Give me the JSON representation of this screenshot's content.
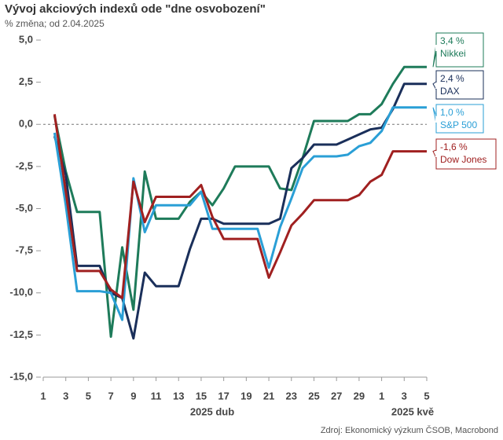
{
  "chart_data": {
    "type": "line",
    "title": "Vývoj akciových indexů ode \"dne osvobození\"",
    "subtitle": "% změna; od 2.04.2025",
    "source": "Zdroj: Ekonomický výzkum ČSOB, Macrobond",
    "x_groups": [
      "2025 dub",
      "2025 kvě"
    ],
    "x": [
      "2025-04-02",
      "2025-04-03",
      "2025-04-04",
      "2025-04-05",
      "2025-04-06",
      "2025-04-07",
      "2025-04-08",
      "2025-04-09",
      "2025-04-10",
      "2025-04-11",
      "2025-04-12",
      "2025-04-13",
      "2025-04-14",
      "2025-04-15",
      "2025-04-16",
      "2025-04-17",
      "2025-04-18",
      "2025-04-19",
      "2025-04-20",
      "2025-04-21",
      "2025-04-22",
      "2025-04-23",
      "2025-04-24",
      "2025-04-25",
      "2025-04-26",
      "2025-04-27",
      "2025-04-28",
      "2025-04-29",
      "2025-04-30",
      "2025-05-01",
      "2025-05-02",
      "2025-05-03",
      "2025-05-04",
      "2025-05-05"
    ],
    "xlim": [
      "2025-04-01",
      "2025-05-05"
    ],
    "xticks": [
      {
        "value": "2025-04-01",
        "label": "1"
      },
      {
        "value": "2025-04-03",
        "label": "3"
      },
      {
        "value": "2025-04-05",
        "label": "5"
      },
      {
        "value": "2025-04-07",
        "label": "7"
      },
      {
        "value": "2025-04-09",
        "label": "9"
      },
      {
        "value": "2025-04-11",
        "label": "11"
      },
      {
        "value": "2025-04-13",
        "label": "13"
      },
      {
        "value": "2025-04-15",
        "label": "15"
      },
      {
        "value": "2025-04-17",
        "label": "17"
      },
      {
        "value": "2025-04-19",
        "label": "19"
      },
      {
        "value": "2025-04-21",
        "label": "21"
      },
      {
        "value": "2025-04-23",
        "label": "23"
      },
      {
        "value": "2025-04-25",
        "label": "25"
      },
      {
        "value": "2025-04-27",
        "label": "27"
      },
      {
        "value": "2025-04-29",
        "label": "29"
      },
      {
        "value": "2025-05-01",
        "label": "1"
      },
      {
        "value": "2025-05-03",
        "label": "3"
      },
      {
        "value": "2025-05-05",
        "label": "5"
      }
    ],
    "ylim": [
      -15,
      5
    ],
    "yticks": [
      {
        "value": -15,
        "label": "-15,0"
      },
      {
        "value": -12.5,
        "label": "-12,5"
      },
      {
        "value": -10,
        "label": "-10,0"
      },
      {
        "value": -7.5,
        "label": "-7,5"
      },
      {
        "value": -5,
        "label": "-5,0"
      },
      {
        "value": -2.5,
        "label": "-2,5"
      },
      {
        "value": 0,
        "label": "0,0"
      },
      {
        "value": 2.5,
        "label": "2,5"
      },
      {
        "value": 5,
        "label": "5,0"
      }
    ],
    "zero_line": true,
    "series": [
      {
        "name": "Nikkei",
        "color": "#1e7b5a",
        "values": [
          0.5,
          -2.8,
          -5.2,
          -5.2,
          -5.2,
          -12.6,
          -7.3,
          -11.0,
          -2.8,
          -5.6,
          -5.6,
          -5.6,
          -4.6,
          -4.0,
          -4.8,
          -3.8,
          -2.5,
          -2.5,
          -2.5,
          -2.5,
          -3.8,
          -3.9,
          -2.0,
          0.2,
          0.2,
          0.2,
          0.2,
          0.6,
          0.6,
          1.2,
          2.4,
          3.4,
          3.4,
          3.4
        ],
        "value_labels": [
          null,
          null,
          null,
          null,
          null,
          null,
          null,
          null,
          null,
          null,
          null,
          null,
          null,
          null,
          null,
          null,
          null,
          null,
          null,
          null,
          null,
          null,
          null,
          null,
          null,
          null,
          null,
          null,
          null,
          null,
          null,
          null,
          null,
          "3,4 %"
        ]
      },
      {
        "name": "DAX",
        "color": "#1a2f5a",
        "values": [
          -0.7,
          -3.0,
          -8.4,
          -8.4,
          -8.4,
          -10.0,
          -10.3,
          -12.7,
          -8.8,
          -9.6,
          -9.6,
          -9.6,
          -7.4,
          -5.6,
          -5.6,
          -5.9,
          -5.9,
          -5.9,
          -5.9,
          -5.9,
          -5.6,
          -2.6,
          -2.0,
          -1.2,
          -1.2,
          -1.2,
          -0.9,
          -0.6,
          -0.3,
          -0.2,
          0.9,
          2.4,
          2.4,
          2.4
        ],
        "value_labels": [
          null,
          null,
          null,
          null,
          null,
          null,
          null,
          null,
          null,
          null,
          null,
          null,
          null,
          null,
          null,
          null,
          null,
          null,
          null,
          null,
          null,
          null,
          null,
          null,
          null,
          null,
          null,
          null,
          null,
          null,
          null,
          null,
          null,
          "2,4 %"
        ]
      },
      {
        "name": "S&P 500",
        "color": "#2a9fd6",
        "values": [
          -0.5,
          -4.8,
          -9.9,
          -9.9,
          -9.9,
          -10.0,
          -11.6,
          -3.2,
          -6.4,
          -4.8,
          -4.8,
          -4.8,
          -4.8,
          -4.0,
          -6.2,
          -6.2,
          -6.2,
          -6.2,
          -6.2,
          -8.5,
          -6.1,
          -4.4,
          -2.6,
          -1.9,
          -1.9,
          -1.9,
          -1.8,
          -1.3,
          -1.1,
          -0.4,
          1.0,
          1.0,
          1.0,
          1.0
        ],
        "value_labels": [
          null,
          null,
          null,
          null,
          null,
          null,
          null,
          null,
          null,
          null,
          null,
          null,
          null,
          null,
          null,
          null,
          null,
          null,
          null,
          null,
          null,
          null,
          null,
          null,
          null,
          null,
          null,
          null,
          null,
          null,
          null,
          null,
          null,
          "1,0 %"
        ]
      },
      {
        "name": "Dow Jones",
        "color": "#a02020",
        "values": [
          0.6,
          -4.0,
          -8.7,
          -8.7,
          -8.7,
          -9.8,
          -10.3,
          -3.4,
          -5.8,
          -4.3,
          -4.3,
          -4.3,
          -4.3,
          -3.6,
          -5.5,
          -6.8,
          -6.8,
          -6.8,
          -6.8,
          -9.1,
          -7.6,
          -6.0,
          -5.3,
          -4.5,
          -4.5,
          -4.5,
          -4.5,
          -4.2,
          -3.4,
          -3.0,
          -1.6,
          -1.6,
          -1.6,
          -1.6
        ],
        "value_labels": [
          null,
          null,
          null,
          null,
          null,
          null,
          null,
          null,
          null,
          null,
          null,
          null,
          null,
          null,
          null,
          null,
          null,
          null,
          null,
          null,
          null,
          null,
          null,
          null,
          null,
          null,
          null,
          null,
          null,
          null,
          null,
          null,
          null,
          "-1,6 %"
        ]
      }
    ]
  }
}
